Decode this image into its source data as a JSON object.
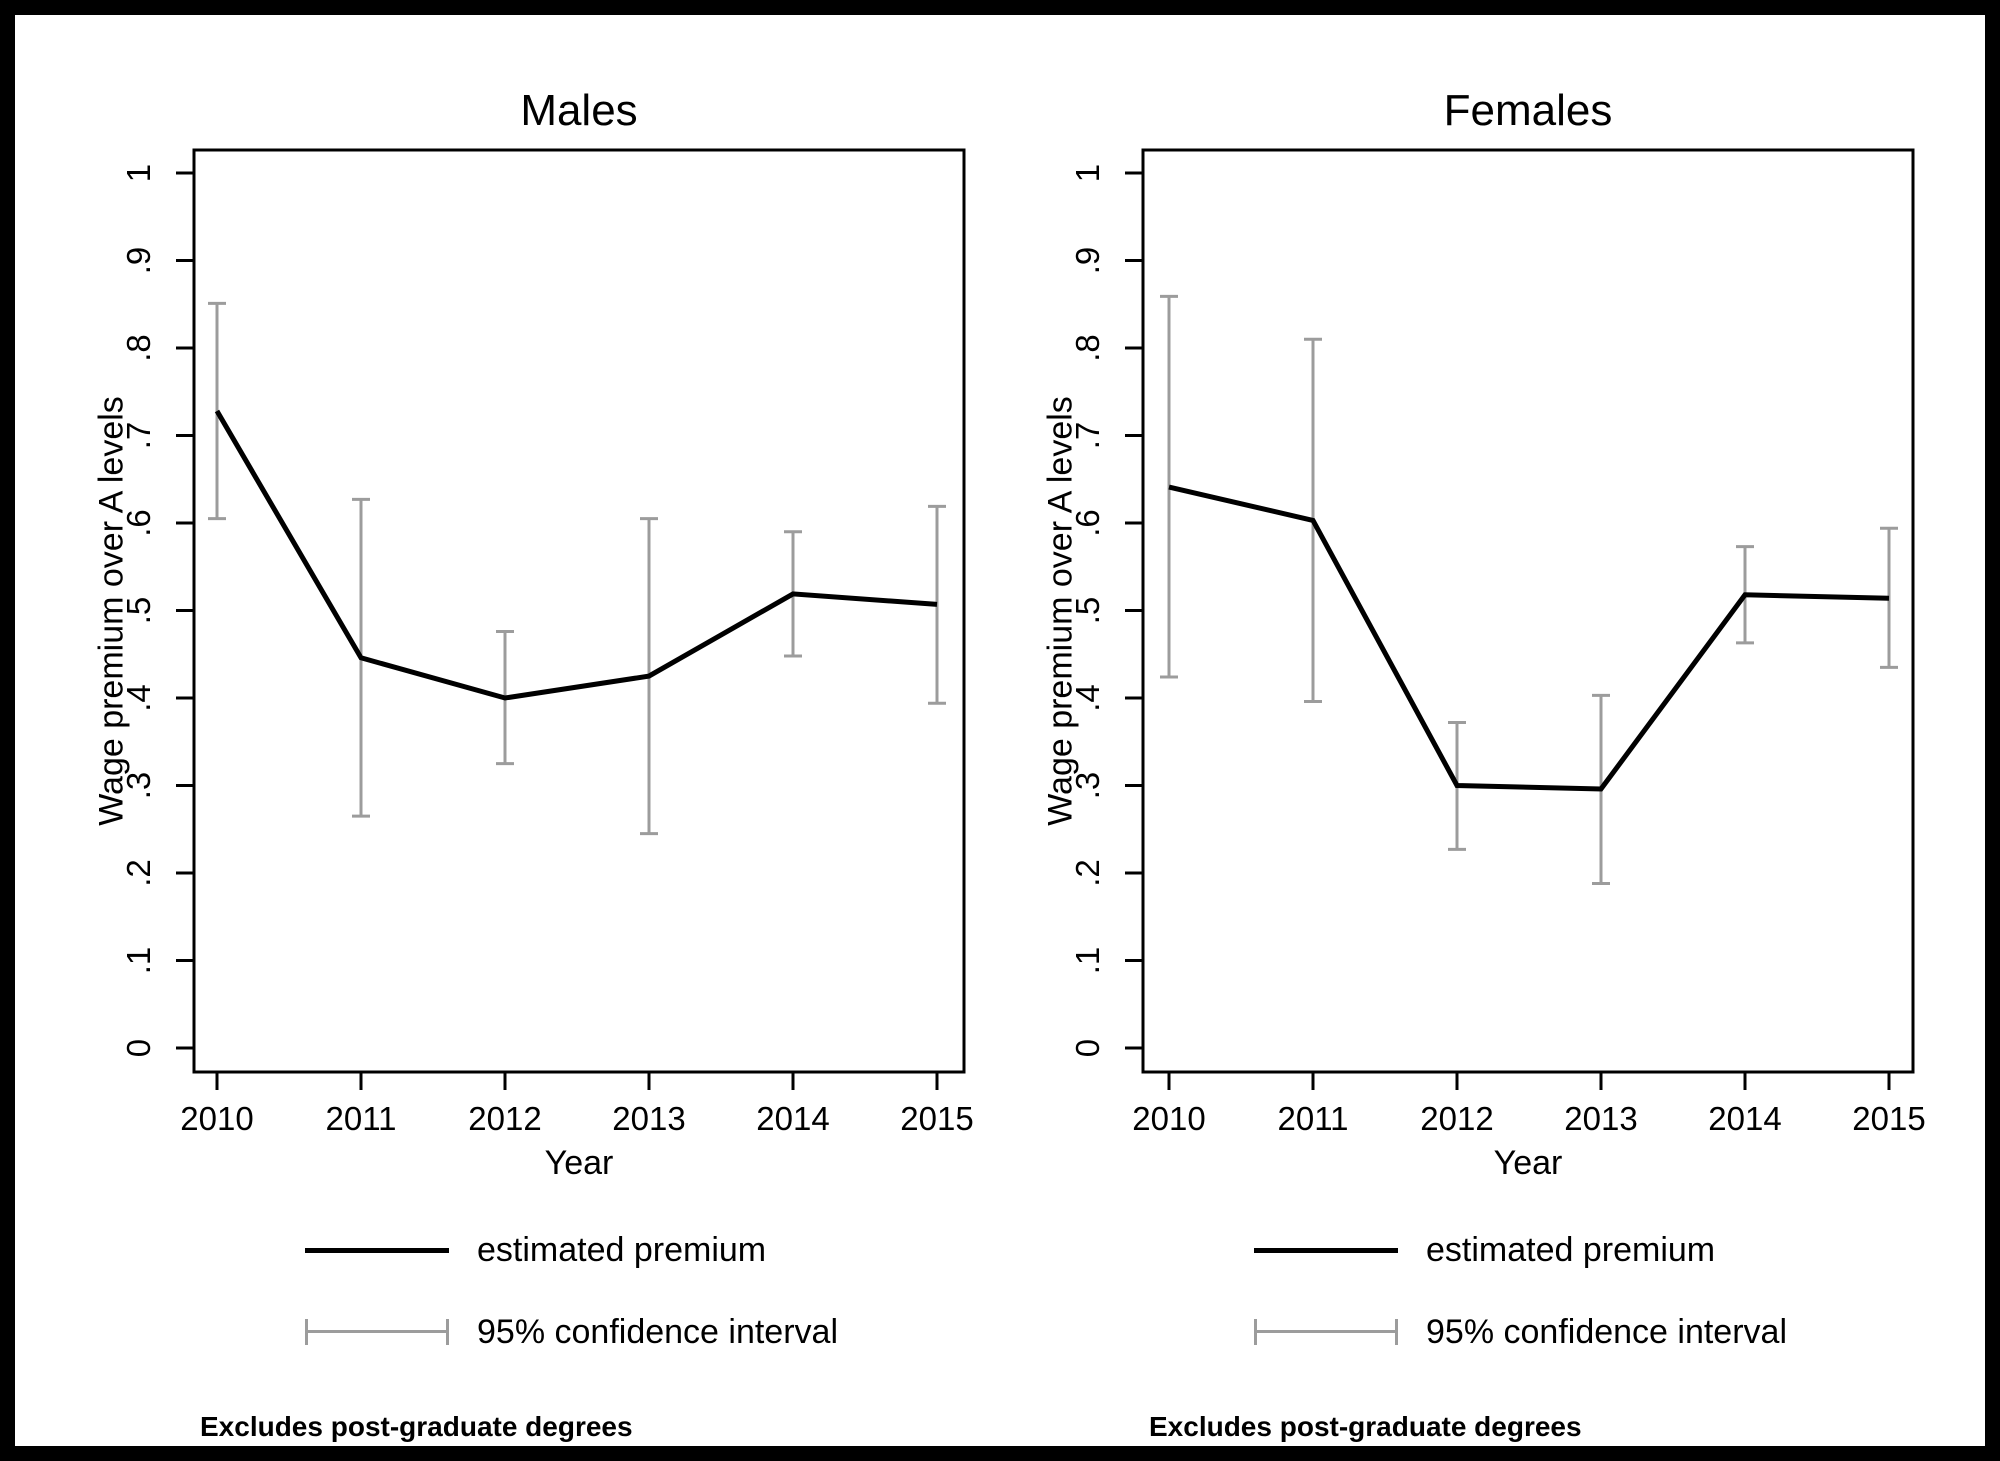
{
  "frame": {
    "border_color": "#000000",
    "background": "#ffffff"
  },
  "chart_data": [
    {
      "type": "line",
      "title": "Males",
      "xlabel": "Year",
      "ylabel": "Wage premium over A levels",
      "x": [
        2010,
        2011,
        2012,
        2013,
        2014,
        2015
      ],
      "series": [
        {
          "name": "estimated premium",
          "color": "#000000",
          "values": [
            0.728,
            0.446,
            0.4,
            0.425,
            0.519,
            0.507
          ]
        }
      ],
      "ci": {
        "name": "95% confidence interval",
        "color": "#9c9c9c",
        "lower": [
          0.605,
          0.265,
          0.325,
          0.245,
          0.448,
          0.394
        ],
        "upper": [
          0.851,
          0.627,
          0.476,
          0.605,
          0.59,
          0.619
        ]
      },
      "ylim": [
        0,
        1
      ],
      "yticks": [
        0,
        0.1,
        0.2,
        0.3,
        0.4,
        0.5,
        0.6,
        0.7,
        0.8,
        0.9,
        1
      ],
      "ytick_labels": [
        "0",
        ".1",
        ".2",
        ".3",
        ".4",
        ".5",
        ".6",
        ".7",
        ".8",
        ".9",
        "1"
      ],
      "grid": false,
      "legend_position": "below",
      "note": "Excludes post-graduate degrees"
    },
    {
      "type": "line",
      "title": "Females",
      "xlabel": "Year",
      "ylabel": "Wage premium over A levels",
      "x": [
        2010,
        2011,
        2012,
        2013,
        2014,
        2015
      ],
      "series": [
        {
          "name": "estimated premium",
          "color": "#000000",
          "values": [
            0.641,
            0.603,
            0.3,
            0.296,
            0.518,
            0.514
          ]
        }
      ],
      "ci": {
        "name": "95% confidence interval",
        "color": "#9c9c9c",
        "lower": [
          0.424,
          0.396,
          0.227,
          0.188,
          0.463,
          0.435
        ],
        "upper": [
          0.859,
          0.81,
          0.372,
          0.403,
          0.573,
          0.594
        ]
      },
      "ylim": [
        0,
        1
      ],
      "yticks": [
        0,
        0.1,
        0.2,
        0.3,
        0.4,
        0.5,
        0.6,
        0.7,
        0.8,
        0.9,
        1
      ],
      "ytick_labels": [
        "0",
        ".1",
        ".2",
        ".3",
        ".4",
        ".5",
        ".6",
        ".7",
        ".8",
        ".9",
        "1"
      ],
      "grid": false,
      "legend_position": "below",
      "note": "Excludes post-graduate degrees"
    }
  ]
}
